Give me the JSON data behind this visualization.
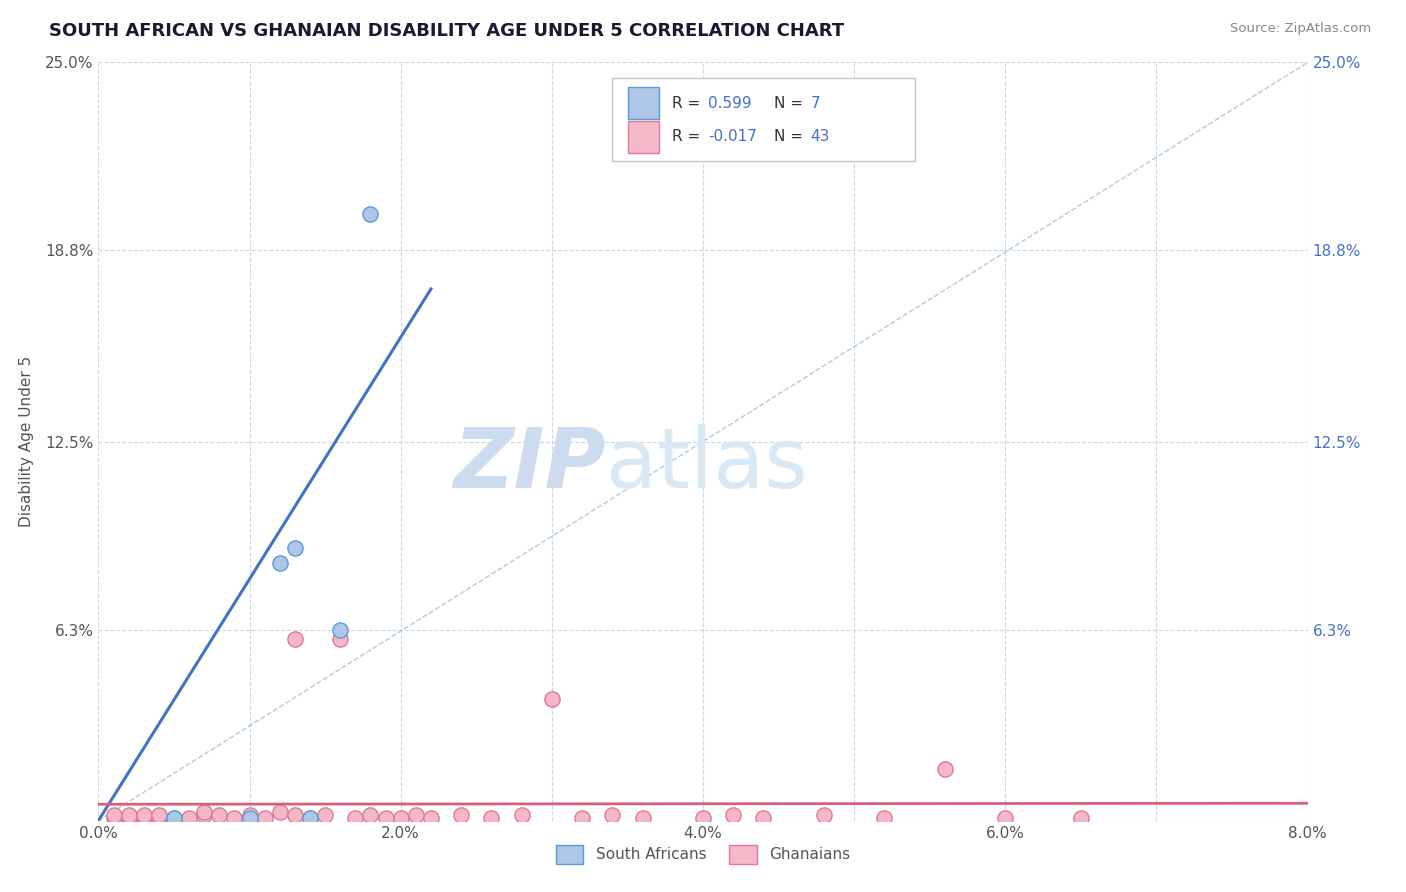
{
  "title": "SOUTH AFRICAN VS GHANAIAN DISABILITY AGE UNDER 5 CORRELATION CHART",
  "source": "Source: ZipAtlas.com",
  "ylabel": "Disability Age Under 5",
  "xlim": [
    0.0,
    0.08
  ],
  "ylim": [
    0.0,
    0.25
  ],
  "xtick_labels": [
    "0.0%",
    "",
    "2.0%",
    "",
    "4.0%",
    "",
    "6.0%",
    "",
    "8.0%"
  ],
  "xtick_values": [
    0.0,
    0.01,
    0.02,
    0.03,
    0.04,
    0.05,
    0.06,
    0.07,
    0.08
  ],
  "xtick_display": [
    "0.0%",
    "2.0%",
    "4.0%",
    "6.0%",
    "8.0%"
  ],
  "xtick_display_vals": [
    0.0,
    0.02,
    0.04,
    0.06,
    0.08
  ],
  "ytick_labels_left": [
    "",
    "6.3%",
    "12.5%",
    "18.8%",
    "25.0%"
  ],
  "ytick_labels_right": [
    "",
    "6.3%",
    "12.5%",
    "18.8%",
    "25.0%"
  ],
  "ytick_values": [
    0.0,
    0.063,
    0.125,
    0.188,
    0.25
  ],
  "sa_color": "#aec6e8",
  "gh_color": "#f5b8c8",
  "sa_edge": "#5b9bd5",
  "gh_edge": "#e07898",
  "trend_sa_color": "#4472c4",
  "trend_gh_color": "#d4607a",
  "diag_color": "#a8c4e0",
  "r_sa": 0.599,
  "n_sa": 7,
  "r_gh": -0.017,
  "n_gh": 43,
  "r_value_color": "#4472c4",
  "title_color": "#1a1a2e",
  "source_color": "#888888",
  "background_color": "#ffffff",
  "grid_color": "#c8d8e8",
  "watermark_color": "#d8e8f4",
  "sa_x": [
    0.005,
    0.01,
    0.012,
    0.013,
    0.014,
    0.016,
    0.018
  ],
  "sa_y": [
    0.001,
    0.001,
    0.085,
    0.09,
    0.001,
    0.063,
    0.2
  ],
  "gh_x": [
    0.001,
    0.001,
    0.002,
    0.002,
    0.003,
    0.003,
    0.004,
    0.004,
    0.005,
    0.006,
    0.007,
    0.007,
    0.008,
    0.009,
    0.01,
    0.011,
    0.012,
    0.013,
    0.013,
    0.014,
    0.015,
    0.016,
    0.017,
    0.018,
    0.019,
    0.02,
    0.021,
    0.022,
    0.024,
    0.026,
    0.028,
    0.03,
    0.032,
    0.034,
    0.036,
    0.04,
    0.042,
    0.044,
    0.048,
    0.052,
    0.056,
    0.06,
    0.065
  ],
  "gh_y": [
    0.001,
    0.002,
    0.001,
    0.002,
    0.001,
    0.002,
    0.001,
    0.002,
    0.001,
    0.001,
    0.002,
    0.003,
    0.002,
    0.001,
    0.002,
    0.001,
    0.003,
    0.002,
    0.06,
    0.001,
    0.002,
    0.06,
    0.001,
    0.002,
    0.001,
    0.001,
    0.002,
    0.001,
    0.002,
    0.001,
    0.002,
    0.04,
    0.001,
    0.002,
    0.001,
    0.001,
    0.002,
    0.001,
    0.002,
    0.001,
    0.017,
    0.001,
    0.001
  ]
}
